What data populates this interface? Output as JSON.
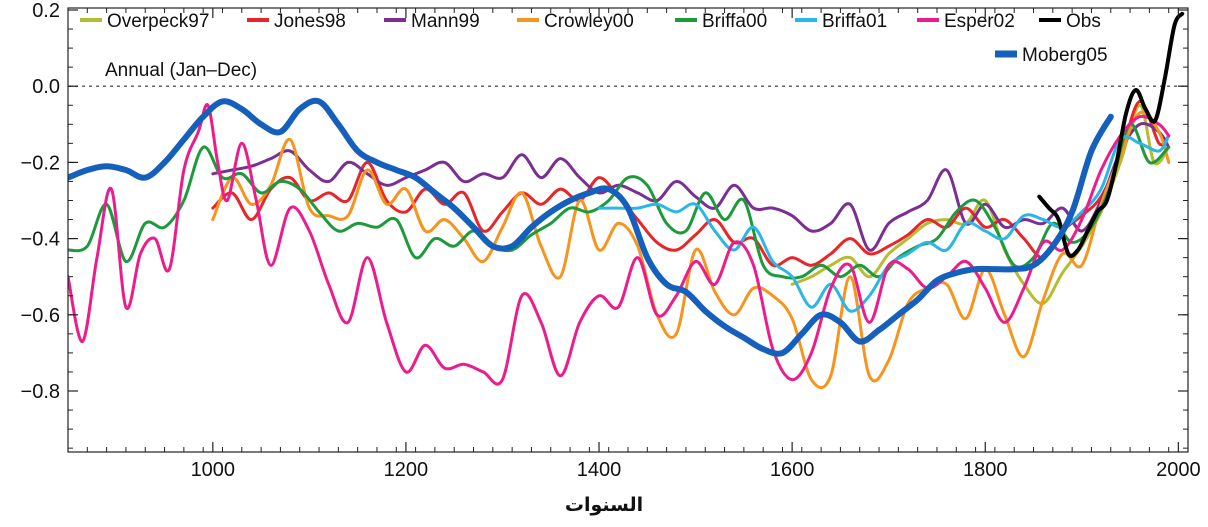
{
  "chart_data": {
    "type": "line",
    "title": "",
    "xlabel": "السنوات",
    "ylabel": "",
    "annotation": "Annual (Jan–Dec)",
    "xlim": [
      850,
      2010
    ],
    "ylim": [
      -0.95,
      0.2
    ],
    "xticks": [
      1000,
      1200,
      1400,
      1600,
      1800,
      2000
    ],
    "xtick_labels": [
      "1000",
      "1200",
      "1400",
      "1600",
      "1800",
      "2000"
    ],
    "yticks": [
      0.2,
      0.0,
      -0.2,
      -0.4,
      -0.6,
      -0.8
    ],
    "ytick_labels": [
      "0.2",
      "0.0",
      "−0.2",
      "−0.4",
      "−0.6",
      "−0.8"
    ],
    "zero_line": {
      "y": 0.0,
      "style": "dotted"
    },
    "legend": {
      "placement": "top"
    },
    "series": [
      {
        "name": "Overpeck97",
        "color": "#b5bd2e",
        "width": 3,
        "x": [
          1600,
          1620,
          1640,
          1660,
          1680,
          1700,
          1720,
          1740,
          1760,
          1780,
          1800,
          1820,
          1840,
          1860,
          1880,
          1900,
          1920,
          1940,
          1960,
          1975,
          1990
        ],
        "y": [
          -0.52,
          -0.5,
          -0.47,
          -0.45,
          -0.5,
          -0.44,
          -0.4,
          -0.36,
          -0.35,
          -0.36,
          -0.3,
          -0.43,
          -0.52,
          -0.57,
          -0.49,
          -0.42,
          -0.33,
          -0.2,
          -0.05,
          -0.2,
          -0.16
        ]
      },
      {
        "name": "Jones98",
        "color": "#e8252a",
        "width": 3,
        "x": [
          1000,
          1020,
          1040,
          1060,
          1080,
          1100,
          1120,
          1140,
          1160,
          1180,
          1200,
          1220,
          1240,
          1260,
          1280,
          1300,
          1320,
          1340,
          1360,
          1380,
          1400,
          1420,
          1440,
          1460,
          1480,
          1500,
          1520,
          1540,
          1560,
          1580,
          1600,
          1620,
          1640,
          1660,
          1680,
          1700,
          1720,
          1740,
          1760,
          1780,
          1800,
          1820,
          1840,
          1860,
          1880,
          1900,
          1920,
          1940,
          1960,
          1980,
          1990
        ],
        "y": [
          -0.32,
          -0.28,
          -0.35,
          -0.27,
          -0.24,
          -0.3,
          -0.28,
          -0.3,
          -0.2,
          -0.3,
          -0.33,
          -0.27,
          -0.31,
          -0.28,
          -0.38,
          -0.33,
          -0.28,
          -0.31,
          -0.27,
          -0.3,
          -0.24,
          -0.29,
          -0.35,
          -0.41,
          -0.43,
          -0.39,
          -0.35,
          -0.41,
          -0.4,
          -0.47,
          -0.45,
          -0.47,
          -0.44,
          -0.4,
          -0.44,
          -0.42,
          -0.39,
          -0.35,
          -0.37,
          -0.32,
          -0.37,
          -0.35,
          -0.4,
          -0.45,
          -0.38,
          -0.34,
          -0.29,
          -0.18,
          -0.04,
          -0.15,
          -0.13
        ]
      },
      {
        "name": "Mann99",
        "color": "#7b2f93",
        "width": 3,
        "x": [
          1000,
          1020,
          1040,
          1060,
          1080,
          1100,
          1120,
          1140,
          1160,
          1180,
          1200,
          1220,
          1240,
          1260,
          1280,
          1300,
          1320,
          1340,
          1360,
          1380,
          1400,
          1420,
          1440,
          1460,
          1480,
          1500,
          1520,
          1540,
          1560,
          1580,
          1600,
          1620,
          1640,
          1660,
          1680,
          1700,
          1720,
          1740,
          1760,
          1780,
          1800,
          1820,
          1840,
          1860,
          1880,
          1900,
          1920,
          1940,
          1960,
          1980,
          1990
        ],
        "y": [
          -0.23,
          -0.22,
          -0.21,
          -0.19,
          -0.17,
          -0.22,
          -0.25,
          -0.2,
          -0.23,
          -0.26,
          -0.24,
          -0.22,
          -0.2,
          -0.25,
          -0.23,
          -0.24,
          -0.18,
          -0.24,
          -0.19,
          -0.24,
          -0.28,
          -0.26,
          -0.28,
          -0.3,
          -0.25,
          -0.29,
          -0.32,
          -0.26,
          -0.32,
          -0.32,
          -0.34,
          -0.38,
          -0.36,
          -0.31,
          -0.43,
          -0.36,
          -0.33,
          -0.3,
          -0.22,
          -0.36,
          -0.31,
          -0.37,
          -0.35,
          -0.36,
          -0.32,
          -0.38,
          -0.3,
          -0.17,
          -0.1,
          -0.12,
          -0.16
        ]
      },
      {
        "name": "Crowley00",
        "color": "#f7941d",
        "width": 3,
        "x": [
          1000,
          1020,
          1040,
          1060,
          1080,
          1100,
          1120,
          1140,
          1160,
          1180,
          1200,
          1220,
          1240,
          1260,
          1280,
          1300,
          1320,
          1340,
          1360,
          1380,
          1400,
          1420,
          1440,
          1460,
          1480,
          1500,
          1520,
          1540,
          1560,
          1580,
          1600,
          1620,
          1640,
          1660,
          1680,
          1700,
          1720,
          1740,
          1760,
          1780,
          1800,
          1820,
          1840,
          1860,
          1880,
          1900,
          1920,
          1940,
          1960,
          1980,
          1990
        ],
        "y": [
          -0.35,
          -0.24,
          -0.31,
          -0.26,
          -0.14,
          -0.32,
          -0.34,
          -0.34,
          -0.22,
          -0.31,
          -0.27,
          -0.38,
          -0.35,
          -0.4,
          -0.46,
          -0.37,
          -0.28,
          -0.42,
          -0.5,
          -0.3,
          -0.43,
          -0.36,
          -0.42,
          -0.6,
          -0.65,
          -0.43,
          -0.54,
          -0.6,
          -0.53,
          -0.55,
          -0.61,
          -0.77,
          -0.76,
          -0.5,
          -0.76,
          -0.72,
          -0.57,
          -0.53,
          -0.52,
          -0.61,
          -0.48,
          -0.6,
          -0.71,
          -0.56,
          -0.44,
          -0.47,
          -0.31,
          -0.18,
          -0.07,
          -0.12,
          -0.2
        ]
      },
      {
        "name": "Briffa00",
        "color": "#1c9a3c",
        "width": 3,
        "x": [
          850,
          870,
          890,
          910,
          930,
          950,
          970,
          990,
          1010,
          1030,
          1050,
          1070,
          1090,
          1110,
          1130,
          1150,
          1170,
          1190,
          1210,
          1230,
          1250,
          1270,
          1290,
          1310,
          1330,
          1350,
          1370,
          1390,
          1410,
          1430,
          1450,
          1470,
          1490,
          1510,
          1530,
          1550,
          1570,
          1590,
          1610,
          1630,
          1650,
          1670,
          1690,
          1710,
          1730,
          1750,
          1770,
          1790,
          1810,
          1830,
          1850,
          1870,
          1890,
          1910,
          1930,
          1950,
          1970,
          1990
        ],
        "y": [
          -0.43,
          -0.42,
          -0.31,
          -0.46,
          -0.36,
          -0.37,
          -0.3,
          -0.16,
          -0.24,
          -0.23,
          -0.28,
          -0.25,
          -0.27,
          -0.33,
          -0.38,
          -0.36,
          -0.37,
          -0.35,
          -0.45,
          -0.4,
          -0.42,
          -0.38,
          -0.42,
          -0.43,
          -0.39,
          -0.36,
          -0.32,
          -0.33,
          -0.3,
          -0.24,
          -0.26,
          -0.36,
          -0.38,
          -0.28,
          -0.35,
          -0.3,
          -0.47,
          -0.5,
          -0.5,
          -0.47,
          -0.5,
          -0.47,
          -0.5,
          -0.45,
          -0.42,
          -0.4,
          -0.33,
          -0.3,
          -0.37,
          -0.47,
          -0.45,
          -0.36,
          -0.41,
          -0.37,
          -0.26,
          -0.1,
          -0.2,
          -0.16
        ]
      },
      {
        "name": "Briffa01",
        "color": "#2ab6e8",
        "width": 3,
        "x": [
          1400,
          1420,
          1440,
          1460,
          1480,
          1500,
          1520,
          1540,
          1560,
          1580,
          1600,
          1620,
          1640,
          1660,
          1680,
          1700,
          1720,
          1740,
          1760,
          1780,
          1800,
          1820,
          1840,
          1860,
          1880,
          1900,
          1920,
          1940,
          1960,
          1980,
          1990
        ],
        "y": [
          -0.32,
          -0.32,
          -0.32,
          -0.31,
          -0.33,
          -0.31,
          -0.38,
          -0.43,
          -0.37,
          -0.46,
          -0.5,
          -0.58,
          -0.52,
          -0.59,
          -0.55,
          -0.47,
          -0.44,
          -0.41,
          -0.43,
          -0.36,
          -0.38,
          -0.4,
          -0.34,
          -0.35,
          -0.37,
          -0.33,
          -0.27,
          -0.14,
          -0.15,
          -0.17,
          -0.13
        ]
      },
      {
        "name": "Esper02",
        "color": "#ec1c8c",
        "width": 3,
        "x": [
          850,
          865,
          880,
          895,
          910,
          925,
          940,
          955,
          970,
          985,
          995,
          1005,
          1015,
          1030,
          1045,
          1060,
          1080,
          1100,
          1120,
          1140,
          1160,
          1180,
          1200,
          1220,
          1240,
          1260,
          1280,
          1300,
          1320,
          1340,
          1360,
          1380,
          1400,
          1420,
          1440,
          1460,
          1480,
          1500,
          1520,
          1540,
          1560,
          1580,
          1600,
          1620,
          1640,
          1660,
          1680,
          1700,
          1720,
          1740,
          1760,
          1780,
          1800,
          1820,
          1840,
          1860,
          1880,
          1900,
          1920,
          1940,
          1960,
          1980,
          1990
        ],
        "y": [
          -0.5,
          -0.67,
          -0.45,
          -0.27,
          -0.58,
          -0.44,
          -0.4,
          -0.48,
          -0.22,
          -0.12,
          -0.05,
          -0.2,
          -0.3,
          -0.15,
          -0.3,
          -0.47,
          -0.32,
          -0.38,
          -0.52,
          -0.62,
          -0.45,
          -0.62,
          -0.75,
          -0.68,
          -0.74,
          -0.73,
          -0.75,
          -0.77,
          -0.55,
          -0.62,
          -0.76,
          -0.62,
          -0.55,
          -0.58,
          -0.45,
          -0.6,
          -0.55,
          -0.46,
          -0.52,
          -0.41,
          -0.47,
          -0.69,
          -0.77,
          -0.7,
          -0.53,
          -0.47,
          -0.62,
          -0.47,
          -0.48,
          -0.53,
          -0.5,
          -0.46,
          -0.53,
          -0.62,
          -0.53,
          -0.41,
          -0.43,
          -0.35,
          -0.22,
          -0.13,
          -0.08,
          -0.1,
          -0.13
        ]
      },
      {
        "name": "Obs",
        "color": "#000000",
        "width": 4,
        "x": [
          1856,
          1866,
          1876,
          1886,
          1896,
          1906,
          1916,
          1926,
          1936,
          1946,
          1956,
          1966,
          1976,
          1986,
          1996,
          2004
        ],
        "y": [
          -0.29,
          -0.32,
          -0.35,
          -0.44,
          -0.43,
          -0.38,
          -0.33,
          -0.3,
          -0.2,
          -0.07,
          -0.01,
          -0.06,
          -0.09,
          0.02,
          0.16,
          0.19
        ]
      },
      {
        "name": "Moberg05",
        "color": "#1560bd",
        "width": 6,
        "x": [
          850,
          870,
          890,
          910,
          930,
          950,
          970,
          990,
          1010,
          1030,
          1050,
          1070,
          1090,
          1110,
          1130,
          1150,
          1170,
          1190,
          1210,
          1230,
          1250,
          1270,
          1290,
          1310,
          1330,
          1350,
          1370,
          1390,
          1410,
          1430,
          1450,
          1470,
          1490,
          1510,
          1530,
          1550,
          1570,
          1590,
          1610,
          1630,
          1650,
          1670,
          1690,
          1710,
          1730,
          1750,
          1770,
          1790,
          1810,
          1830,
          1850,
          1870,
          1890,
          1910,
          1930
        ],
        "y": [
          -0.24,
          -0.22,
          -0.21,
          -0.22,
          -0.24,
          -0.2,
          -0.14,
          -0.08,
          -0.04,
          -0.06,
          -0.1,
          -0.12,
          -0.06,
          -0.04,
          -0.1,
          -0.17,
          -0.2,
          -0.22,
          -0.24,
          -0.28,
          -0.32,
          -0.37,
          -0.42,
          -0.42,
          -0.37,
          -0.33,
          -0.3,
          -0.28,
          -0.27,
          -0.32,
          -0.45,
          -0.52,
          -0.54,
          -0.59,
          -0.63,
          -0.66,
          -0.69,
          -0.7,
          -0.65,
          -0.6,
          -0.62,
          -0.67,
          -0.64,
          -0.6,
          -0.56,
          -0.51,
          -0.49,
          -0.48,
          -0.48,
          -0.48,
          -0.47,
          -0.42,
          -0.33,
          -0.17,
          -0.08
        ]
      }
    ]
  }
}
